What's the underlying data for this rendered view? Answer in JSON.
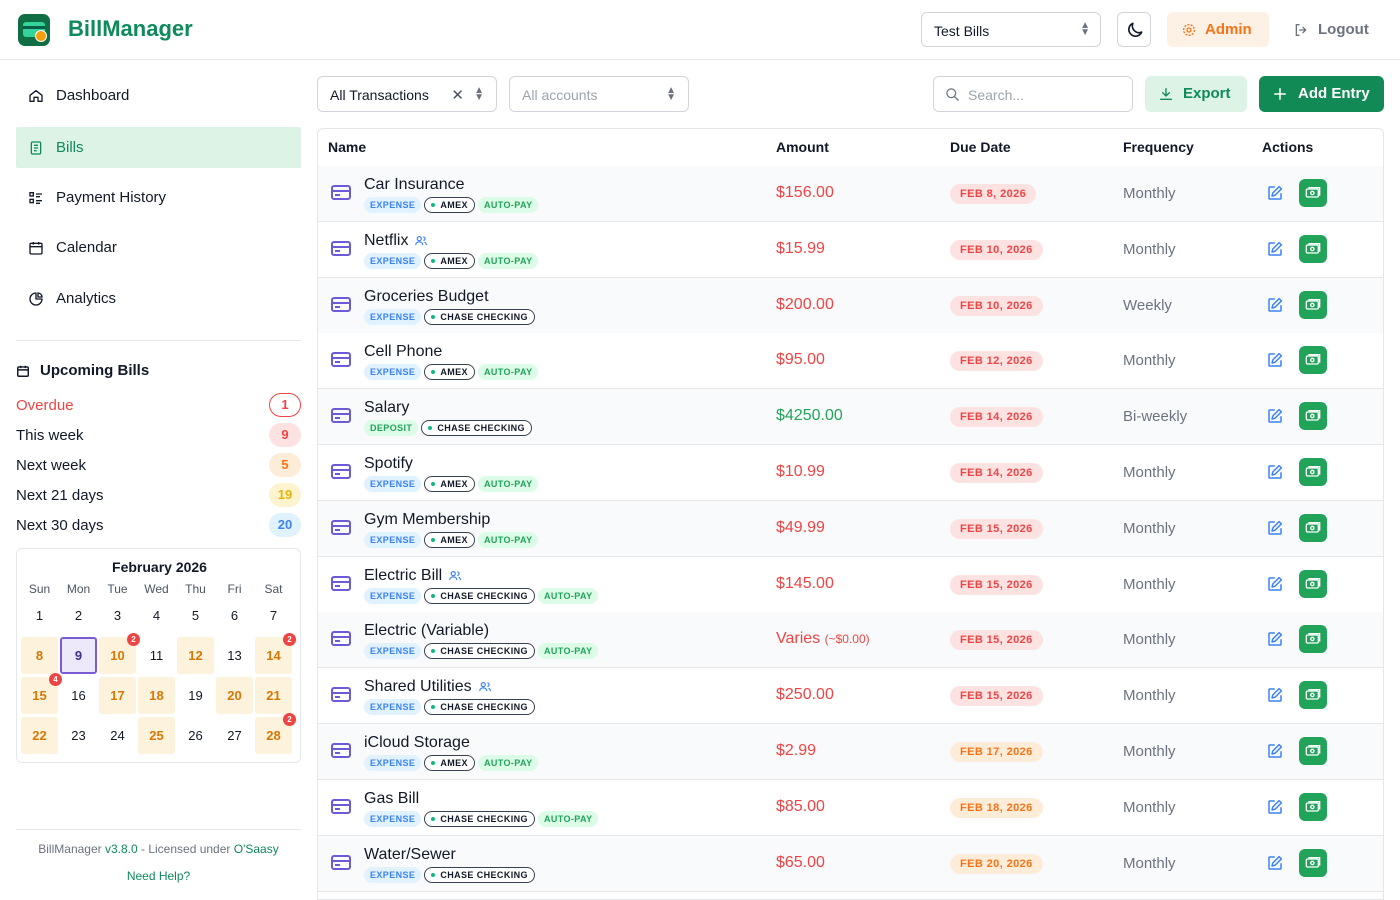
{
  "header": {
    "app_title": "BillManager",
    "database_select": "Test Bills",
    "admin_label": "Admin",
    "logout_label": "Logout"
  },
  "sidebar": {
    "nav": [
      {
        "label": "Dashboard",
        "icon": "home-icon"
      },
      {
        "label": "Bills",
        "icon": "receipt-icon",
        "active": true
      },
      {
        "label": "Payment History",
        "icon": "list-icon"
      },
      {
        "label": "Calendar",
        "icon": "calendar-icon"
      },
      {
        "label": "Analytics",
        "icon": "pie-chart-icon"
      }
    ],
    "upcoming": {
      "title": "Upcoming Bills",
      "rows": [
        {
          "label": "Overdue",
          "count": "1"
        },
        {
          "label": "This week",
          "count": "9"
        },
        {
          "label": "Next week",
          "count": "5"
        },
        {
          "label": "Next 21 days",
          "count": "19"
        },
        {
          "label": "Next 30 days",
          "count": "20"
        }
      ]
    },
    "calendar": {
      "title": "February 2026",
      "dow": [
        "Sun",
        "Mon",
        "Tue",
        "Wed",
        "Thu",
        "Fri",
        "Sat"
      ],
      "days": [
        {
          "d": "1"
        },
        {
          "d": "2"
        },
        {
          "d": "3"
        },
        {
          "d": "4"
        },
        {
          "d": "5"
        },
        {
          "d": "6"
        },
        {
          "d": "7"
        },
        {
          "d": "8",
          "has": true
        },
        {
          "d": "9",
          "today": true
        },
        {
          "d": "10",
          "has": true,
          "count": "2"
        },
        {
          "d": "11"
        },
        {
          "d": "12",
          "has": true
        },
        {
          "d": "13"
        },
        {
          "d": "14",
          "has": true,
          "count": "2"
        },
        {
          "d": "15",
          "has": true,
          "count": "4"
        },
        {
          "d": "16"
        },
        {
          "d": "17",
          "has": true
        },
        {
          "d": "18",
          "has": true
        },
        {
          "d": "19"
        },
        {
          "d": "20",
          "has": true
        },
        {
          "d": "21",
          "has": true
        },
        {
          "d": "22",
          "has": true
        },
        {
          "d": "23"
        },
        {
          "d": "24"
        },
        {
          "d": "25",
          "has": true
        },
        {
          "d": "26"
        },
        {
          "d": "27"
        },
        {
          "d": "28",
          "has": true,
          "count": "2"
        }
      ]
    },
    "footer": {
      "prefix": "BillManager ",
      "version": "v3.8.0",
      "middle": " - Licensed under ",
      "license": "O'Saasy",
      "help": "Need Help?"
    }
  },
  "toolbar": {
    "type_filter": "All Transactions",
    "account_filter_placeholder": "All accounts",
    "search_placeholder": "Search...",
    "export_label": "Export",
    "add_label": "Add Entry"
  },
  "table": {
    "headers": {
      "name": "Name",
      "amount": "Amount",
      "due": "Due Date",
      "frequency": "Frequency",
      "actions": "Actions"
    },
    "rows": [
      {
        "name": "Car Insurance",
        "shared": false,
        "type": "EXPENSE",
        "account": "AMEX",
        "autopay": "AUTO-PAY",
        "amount": "$156.00",
        "amount_sub": "",
        "kind": "expense",
        "due": "FEB 8, 2026",
        "due_tone": "red",
        "frequency": "Monthly"
      },
      {
        "name": "Netflix",
        "shared": true,
        "type": "EXPENSE",
        "account": "AMEX",
        "autopay": "AUTO-PAY",
        "amount": "$15.99",
        "amount_sub": "",
        "kind": "expense",
        "due": "FEB 10, 2026",
        "due_tone": "red",
        "frequency": "Monthly"
      },
      {
        "name": "Groceries Budget",
        "shared": false,
        "type": "EXPENSE",
        "account": "CHASE CHECKING",
        "autopay": "",
        "amount": "$200.00",
        "amount_sub": "",
        "kind": "expense",
        "due": "FEB 10, 2026",
        "due_tone": "red",
        "frequency": "Weekly"
      },
      {
        "name": "Cell Phone",
        "shared": false,
        "type": "EXPENSE",
        "account": "AMEX",
        "autopay": "AUTO-PAY",
        "amount": "$95.00",
        "amount_sub": "",
        "kind": "expense",
        "due": "FEB 12, 2026",
        "due_tone": "red",
        "frequency": "Monthly"
      },
      {
        "name": "Salary",
        "shared": false,
        "type": "DEPOSIT",
        "account": "CHASE CHECKING",
        "autopay": "",
        "amount": "$4250.00",
        "amount_sub": "",
        "kind": "deposit",
        "due": "FEB 14, 2026",
        "due_tone": "red",
        "frequency": "Bi-weekly"
      },
      {
        "name": "Spotify",
        "shared": false,
        "type": "EXPENSE",
        "account": "AMEX",
        "autopay": "AUTO-PAY",
        "amount": "$10.99",
        "amount_sub": "",
        "kind": "expense",
        "due": "FEB 14, 2026",
        "due_tone": "red",
        "frequency": "Monthly"
      },
      {
        "name": "Gym Membership",
        "shared": false,
        "type": "EXPENSE",
        "account": "AMEX",
        "autopay": "AUTO-PAY",
        "amount": "$49.99",
        "amount_sub": "",
        "kind": "expense",
        "due": "FEB 15, 2026",
        "due_tone": "red",
        "frequency": "Monthly"
      },
      {
        "name": "Electric Bill",
        "shared": true,
        "type": "EXPENSE",
        "account": "CHASE CHECKING",
        "autopay": "AUTO-PAY",
        "amount": "$145.00",
        "amount_sub": "",
        "kind": "expense",
        "due": "FEB 15, 2026",
        "due_tone": "red",
        "frequency": "Monthly"
      },
      {
        "name": "Electric (Variable)",
        "shared": false,
        "type": "EXPENSE",
        "account": "CHASE CHECKING",
        "autopay": "AUTO-PAY",
        "amount": "Varies",
        "amount_sub": "(~$0.00)",
        "kind": "expense",
        "due": "FEB 15, 2026",
        "due_tone": "red",
        "frequency": "Monthly"
      },
      {
        "name": "Shared Utilities",
        "shared": true,
        "type": "EXPENSE",
        "account": "CHASE CHECKING",
        "autopay": "",
        "amount": "$250.00",
        "amount_sub": "",
        "kind": "expense",
        "due": "FEB 15, 2026",
        "due_tone": "red",
        "frequency": "Monthly"
      },
      {
        "name": "iCloud Storage",
        "shared": false,
        "type": "EXPENSE",
        "account": "AMEX",
        "autopay": "AUTO-PAY",
        "amount": "$2.99",
        "amount_sub": "",
        "kind": "expense",
        "due": "FEB 17, 2026",
        "due_tone": "amber",
        "frequency": "Monthly"
      },
      {
        "name": "Gas Bill",
        "shared": false,
        "type": "EXPENSE",
        "account": "CHASE CHECKING",
        "autopay": "AUTO-PAY",
        "amount": "$85.00",
        "amount_sub": "",
        "kind": "expense",
        "due": "FEB 18, 2026",
        "due_tone": "amber",
        "frequency": "Monthly"
      },
      {
        "name": "Water/Sewer",
        "shared": false,
        "type": "EXPENSE",
        "account": "CHASE CHECKING",
        "autopay": "",
        "amount": "$65.00",
        "amount_sub": "",
        "kind": "expense",
        "due": "FEB 20, 2026",
        "due_tone": "amber",
        "frequency": "Monthly"
      }
    ]
  },
  "colors": {
    "brand": "#0f8a5a",
    "expense": "#ef4444",
    "deposit": "#22a35a",
    "admin": "#f97316",
    "accent_purple": "#6d5ad6"
  }
}
